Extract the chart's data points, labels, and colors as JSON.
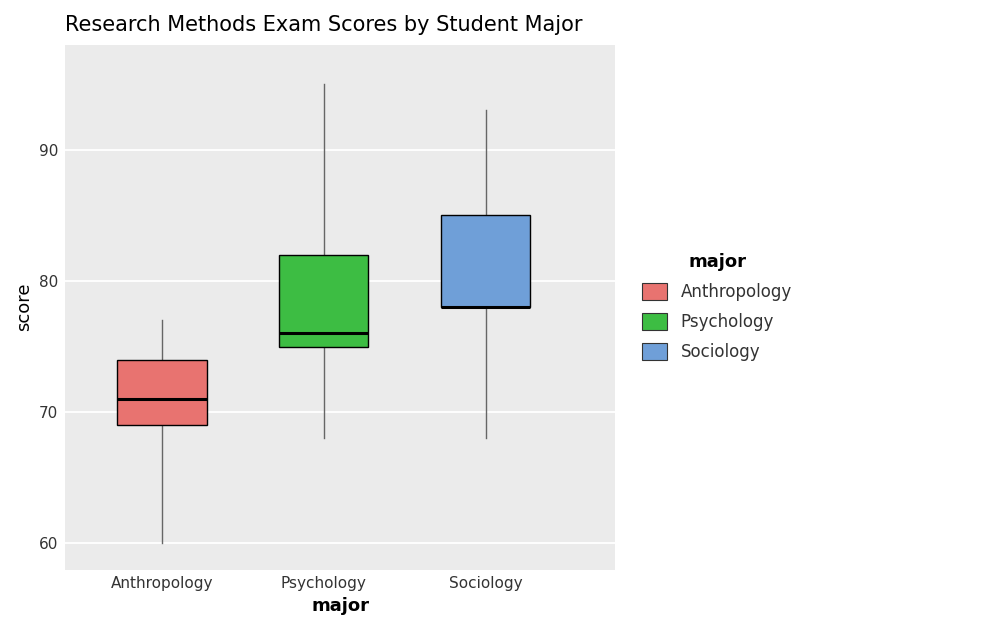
{
  "title": "Research Methods Exam Scores by Student Major",
  "xlabel": "major",
  "ylabel": "score",
  "plot_bg_color": "#EBEBEB",
  "categories": [
    "Anthropology",
    "Psychology",
    "Sociology"
  ],
  "colors": [
    "#E87370",
    "#3DB d43",
    "#6F9FD8"
  ],
  "legend_title": "major",
  "legend_labels": [
    "Anthropology",
    "Psychology",
    "Sociology"
  ],
  "legend_colors": [
    "#E87370",
    "#3DBD43",
    "#6F9FD8"
  ],
  "ylim": [
    58,
    98
  ],
  "yticks": [
    60,
    70,
    80,
    90
  ],
  "boxes": [
    {
      "label": "Anthropology",
      "whislo": 60,
      "q1": 69,
      "med": 71,
      "q3": 74,
      "whishi": 77
    },
    {
      "label": "Psychology",
      "whislo": 68,
      "q1": 75,
      "med": 76,
      "q3": 82,
      "whishi": 95
    },
    {
      "label": "Sociology",
      "whislo": 68,
      "q1": 78,
      "med": 78,
      "q3": 85,
      "whishi": 93
    }
  ],
  "title_fontsize": 15,
  "axis_label_fontsize": 13,
  "tick_fontsize": 11,
  "legend_fontsize": 12,
  "legend_title_fontsize": 13
}
